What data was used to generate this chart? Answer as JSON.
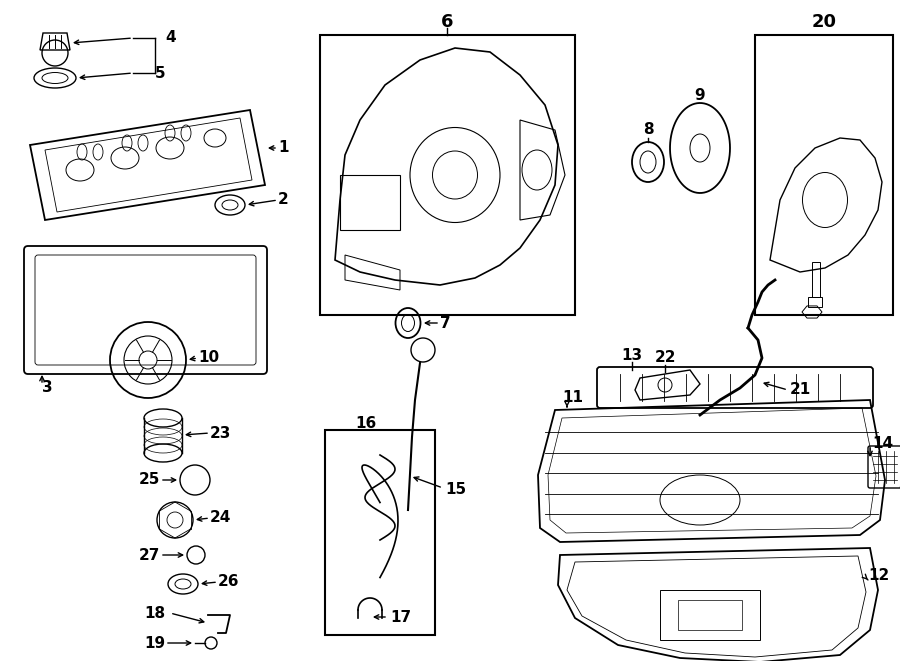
{
  "bg_color": "#ffffff",
  "line_color": "#000000",
  "lw": 1.0,
  "figsize": [
    9.0,
    6.61
  ],
  "dpi": 100,
  "label_fs": 11
}
